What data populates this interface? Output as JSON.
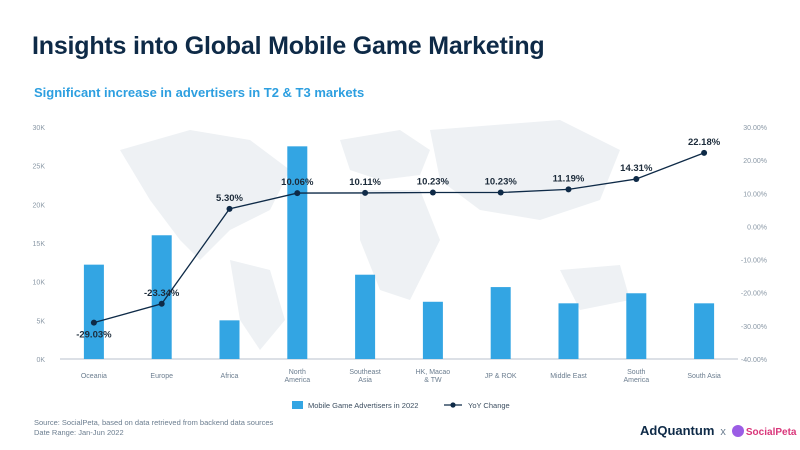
{
  "title": "Insights into Global Mobile Game Marketing",
  "subtitle": "Significant increase in advertisers in T2 & T3 markets",
  "footer": {
    "source": "Source: SocialPeta, based on data retrieved from backend data sources",
    "date_range": "Date Range: Jan-Jun 2022"
  },
  "brand": {
    "adquantum": "AdQuantum",
    "separator": "x",
    "socialpeta": "SocialPeta"
  },
  "colors": {
    "bar": "#33a5e3",
    "line": "#0e2a47",
    "title": "#0e2a47",
    "subtitle": "#2d9fe0"
  },
  "chart_data": {
    "type": "bar",
    "categories": [
      [
        "Oceania"
      ],
      [
        "Europe"
      ],
      [
        "Africa"
      ],
      [
        "North",
        "America"
      ],
      [
        "Southeast",
        "Asia"
      ],
      [
        "HK, Macao",
        "& TW"
      ],
      [
        "JP & ROK"
      ],
      [
        "Middle East"
      ],
      [
        "South",
        "America"
      ],
      [
        "South Asia"
      ]
    ],
    "series": [
      {
        "name": "Mobile Game Advertisers in 2022",
        "type": "bar",
        "axis": "left",
        "values": [
          12200,
          16000,
          5000,
          27500,
          10900,
          7400,
          9300,
          7200,
          8500,
          7200
        ]
      },
      {
        "name": "YoY Change",
        "type": "line",
        "axis": "right",
        "values": [
          -29.03,
          -23.34,
          5.3,
          10.06,
          10.11,
          10.23,
          10.23,
          11.19,
          14.31,
          22.18
        ],
        "labels": [
          "-29.03%",
          "-23.34%",
          "5.30%",
          "10.06%",
          "10.11%",
          "10.23%",
          "10.23%",
          "11.19%",
          "14.31%",
          "22.18%"
        ]
      }
    ],
    "y_left": {
      "ylim": [
        0,
        30000
      ],
      "ticks": [
        0,
        5000,
        10000,
        15000,
        20000,
        25000,
        30000
      ],
      "tick_labels": [
        "0K",
        "5K",
        "10K",
        "15K",
        "20K",
        "25K",
        "30K"
      ]
    },
    "y_right": {
      "ylim": [
        -40,
        30
      ],
      "ticks": [
        -40,
        -30,
        -20,
        -10,
        0,
        10,
        20,
        30
      ],
      "tick_labels": [
        "-40.00%",
        "-30.00%",
        "-20.00%",
        "-10.00%",
        "0.00%",
        "10.00%",
        "20.00%",
        "30.00%"
      ]
    },
    "grid": false,
    "legend_position": "bottom"
  }
}
